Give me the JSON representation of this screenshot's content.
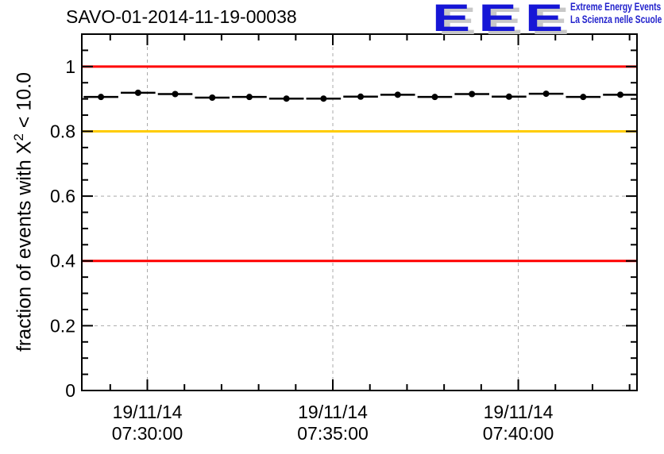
{
  "title": "SAVO-01-2014-11-19-00038",
  "logo": {
    "acronym": "EEE",
    "line1": "Extreme Energy Events",
    "line2": "La Scienza nelle Scuole",
    "acronym_color": "#1616d6",
    "text_color": "#2121cc",
    "shadow_color": "#c8c8c8"
  },
  "y_axis_label": {
    "prefix": "fraction of events with X",
    "sup": "2",
    "suffix": " < 10.0"
  },
  "chart_data": {
    "type": "line",
    "title": "SAVO-01-2014-11-19-00038",
    "ylabel": "fraction of events with X^2 < 10.0",
    "xlabel": "",
    "x_is_time": true,
    "x_range": [
      "07:28:14",
      "07:43:12"
    ],
    "x_major_ticks": [
      "07:30:00",
      "07:35:00",
      "07:40:00"
    ],
    "x_tick_date_line": "19/11/14",
    "x_minor_step_seconds": 60,
    "ylim": [
      0,
      1.1
    ],
    "y_major_ticks": [
      0,
      0.2,
      0.4,
      0.6,
      0.8,
      1
    ],
    "y_tick_labels": [
      "0",
      "0.2",
      "0.4",
      "0.6",
      "0.8",
      "1"
    ],
    "y_minor_step": 0.05,
    "grid": {
      "style": "dashed",
      "color": "#aaaaaa",
      "at_major_ticks": true
    },
    "reference_lines": [
      {
        "y": 1.0,
        "color": "#ff0000",
        "width": 3
      },
      {
        "y": 0.8,
        "color": "#ffcc00",
        "width": 3
      },
      {
        "y": 0.4,
        "color": "#ff0000",
        "width": 3
      }
    ],
    "series": [
      {
        "marker": "filled-circle",
        "color": "#000000",
        "x_error_seconds": 28,
        "points": [
          {
            "time": "07:28:45",
            "value": 0.906
          },
          {
            "time": "07:29:45",
            "value": 0.919
          },
          {
            "time": "07:30:45",
            "value": 0.915
          },
          {
            "time": "07:31:45",
            "value": 0.904
          },
          {
            "time": "07:32:45",
            "value": 0.906
          },
          {
            "time": "07:33:45",
            "value": 0.901
          },
          {
            "time": "07:34:45",
            "value": 0.901
          },
          {
            "time": "07:35:45",
            "value": 0.907
          },
          {
            "time": "07:36:45",
            "value": 0.913
          },
          {
            "time": "07:37:45",
            "value": 0.906
          },
          {
            "time": "07:38:45",
            "value": 0.915
          },
          {
            "time": "07:39:45",
            "value": 0.907
          },
          {
            "time": "07:40:45",
            "value": 0.916
          },
          {
            "time": "07:41:45",
            "value": 0.906
          },
          {
            "time": "07:42:45",
            "value": 0.913
          }
        ]
      }
    ]
  }
}
